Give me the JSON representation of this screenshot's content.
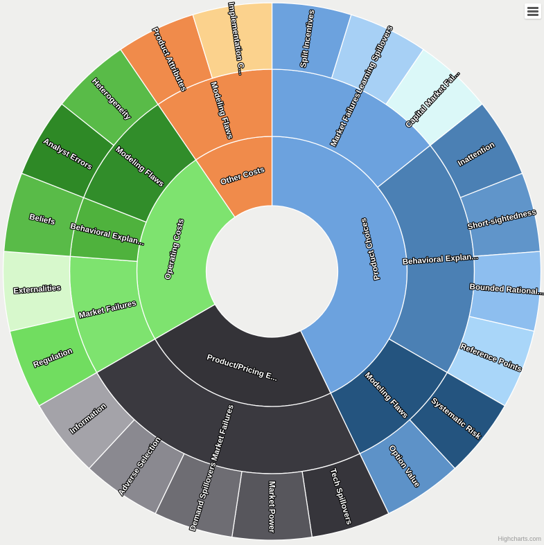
{
  "chart": {
    "background": "#EFEFED",
    "credits_text": "Highcharts.com",
    "menu_icon": "hamburger-icon"
  },
  "chart_data": {
    "type": "sunburst",
    "legend": "none",
    "rings": 3,
    "title": "",
    "root": {
      "children": [
        {
          "name": "Product Choices",
          "color": "#6CA2DE",
          "children": [
            {
              "name": "Market Failures",
              "color": "#6CA2DE",
              "children": [
                {
                  "name": "Split Incentives",
                  "color": "#6CA2DE",
                  "value": 1
                },
                {
                  "name": "Learning Spillovers",
                  "color": "#A7D0F5",
                  "value": 1
                },
                {
                  "name": "Capital Market Fai...",
                  "color": "#DBF8F8",
                  "value": 1
                }
              ]
            },
            {
              "name": "Behavioral Explan...",
              "color": "#4B80B4",
              "children": [
                {
                  "name": "Inattention",
                  "color": "#4B80B4",
                  "value": 1
                },
                {
                  "name": "Short-sightedness",
                  "color": "#6095CA",
                  "value": 1
                },
                {
                  "name": "Bounded Rational...",
                  "color": "#8DBEEF",
                  "value": 1
                },
                {
                  "name": "Reference Points",
                  "color": "#A9D6F9",
                  "value": 1
                }
              ]
            },
            {
              "name": "Modeling Flaws",
              "color": "#24547F",
              "children": [
                {
                  "name": "Systematic Risk",
                  "color": "#24547F",
                  "value": 1
                },
                {
                  "name": "Option Value",
                  "color": "#5D92C8",
                  "value": 1
                }
              ]
            }
          ]
        },
        {
          "name": "Product/Pricing E...",
          "color": "#343338",
          "children": [
            {
              "name": "Market Failures",
              "color": "#3A393F",
              "children": [
                {
                  "name": "Tech Spillovers",
                  "color": "#36353B",
                  "value": 1
                },
                {
                  "name": "Market Power",
                  "color": "#57565C",
                  "value": 1
                },
                {
                  "name": "Demand Spillovers",
                  "color": "#6E6D73",
                  "value": 1
                },
                {
                  "name": "Adverse Selection",
                  "color": "#8A8990",
                  "value": 1
                },
                {
                  "name": "Information",
                  "color": "#A4A3A9",
                  "value": 1
                }
              ]
            }
          ]
        },
        {
          "name": "Operating Costs",
          "color": "#7EE36F",
          "children": [
            {
              "name": "Market Failures",
              "color": "#7EE36F",
              "children": [
                {
                  "name": "Regulation",
                  "color": "#71DD60",
                  "value": 1
                },
                {
                  "name": "Externalities",
                  "color": "#D7F8CC",
                  "value": 1
                }
              ]
            },
            {
              "name": "Behavioral Explan...",
              "color": "#4FB23D",
              "children": [
                {
                  "name": "Beliefs",
                  "color": "#59BB48",
                  "value": 1
                }
              ]
            },
            {
              "name": "Modeling Flaws",
              "color": "#318D2A",
              "children": [
                {
                  "name": "Analyst Errors",
                  "color": "#2E8926",
                  "value": 1
                },
                {
                  "name": "Heterogeneity",
                  "color": "#59BB48",
                  "value": 1
                }
              ]
            }
          ]
        },
        {
          "name": "Other Costs",
          "color": "#F08B4B",
          "children": [
            {
              "name": "Modeling Flaws",
              "color": "#F08B4B",
              "children": [
                {
                  "name": "Product Attributes",
                  "color": "#F08B4B",
                  "value": 1
                },
                {
                  "name": "Implementation C...",
                  "color": "#FBD28D",
                  "value": 1
                }
              ]
            }
          ]
        }
      ]
    }
  }
}
